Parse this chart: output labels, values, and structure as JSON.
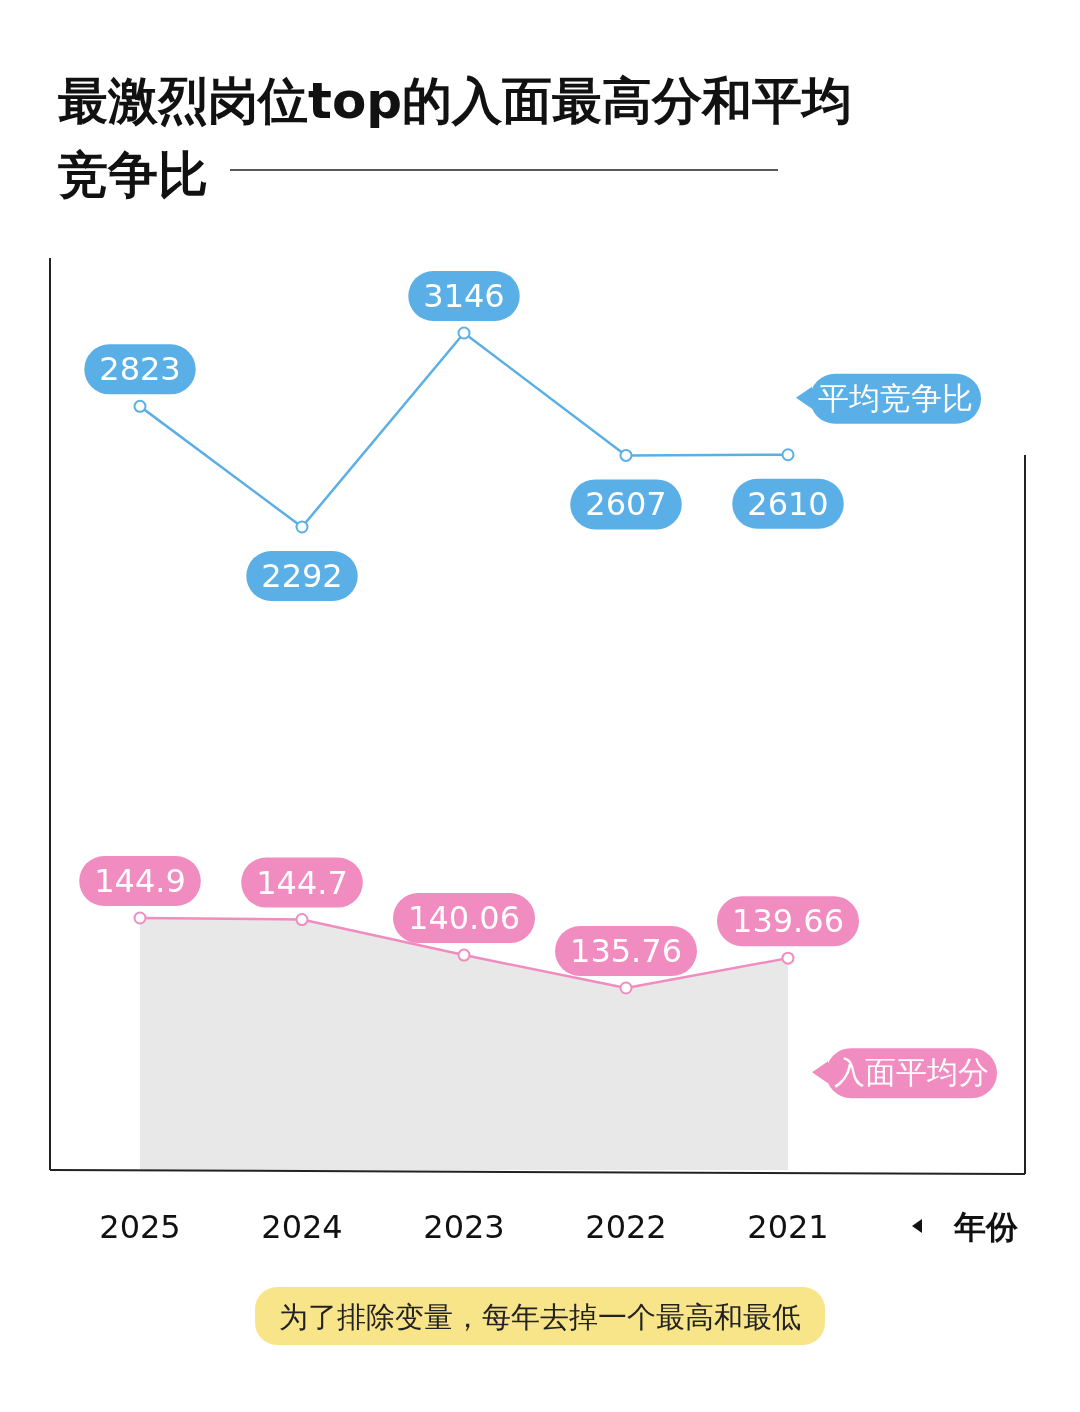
{
  "chart_data": [
    {
      "type": "line",
      "title": "最激烈岗位top的入面最高分和平均竞争比",
      "categories": [
        null,
        null,
        null,
        null,
        null
      ],
      "series": [
        {
          "name": "平均竞争比",
          "color": "#5aafe6",
          "values": [
            2823,
            2292,
            3146,
            2607,
            2610
          ]
        }
      ],
      "data_labels": true,
      "marker": "circle",
      "legend": "right"
    },
    {
      "type": "line",
      "categories": [
        "2025",
        "2024",
        "2023",
        "2022",
        "2021"
      ],
      "xlabel": "年份",
      "series": [
        {
          "name": "入面平均分",
          "color": "#f08cc0",
          "values": [
            144.9,
            144.7,
            140.06,
            135.76,
            139.66
          ]
        }
      ],
      "data_labels": true,
      "marker": "circle",
      "legend": "right",
      "annotations": [
        "为了排除变量，每年去掉一个最高和最低"
      ]
    }
  ]
}
